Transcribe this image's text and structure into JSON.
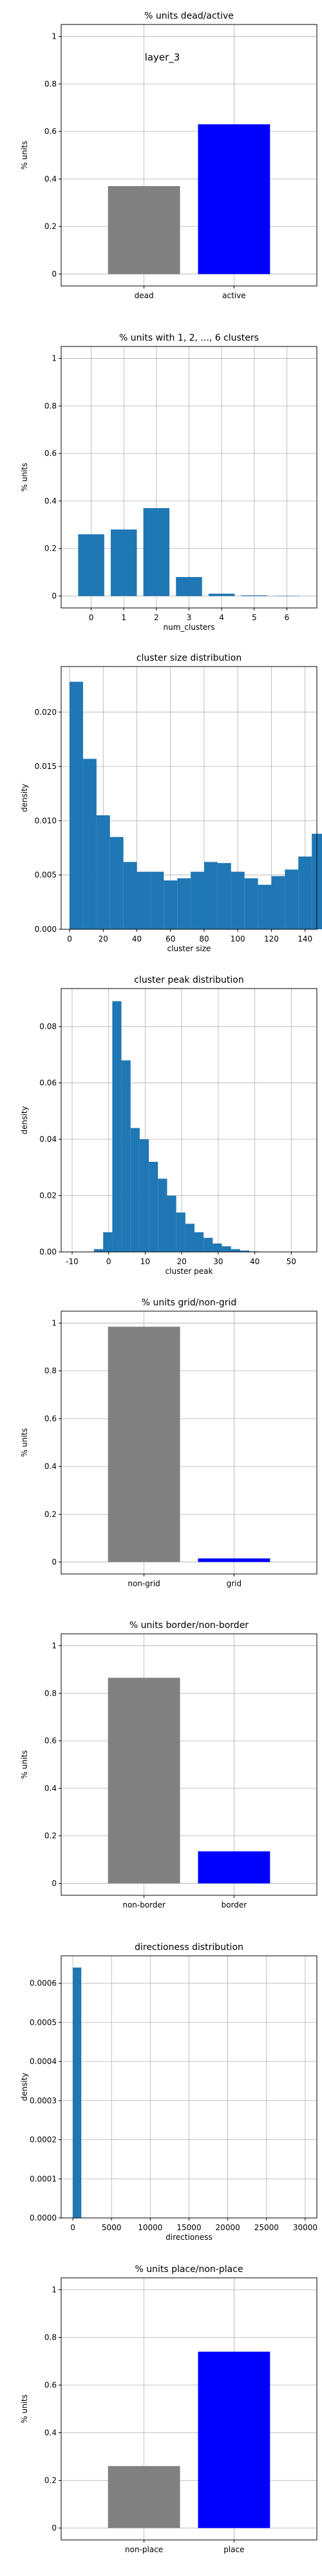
{
  "chart_data": [
    {
      "type": "bar",
      "title": "% units dead/active",
      "annotation": "layer_3",
      "xlabel": "",
      "ylabel": "% units",
      "categories": [
        "dead",
        "active"
      ],
      "values": [
        0.37,
        0.63
      ],
      "colors": [
        "#808080",
        "#0000ff"
      ],
      "ylim": [
        -0.05,
        1.05
      ],
      "yticks": [
        0.0,
        0.2,
        0.4,
        0.6,
        0.8,
        1.0
      ],
      "grid": true
    },
    {
      "type": "bar",
      "title": "% units with 1, 2, ..., 6 clusters",
      "xlabel": "num_clusters",
      "ylabel": "% units",
      "categories": [
        "0",
        "1",
        "2",
        "3",
        "4",
        "5",
        "6"
      ],
      "values": [
        0.26,
        0.28,
        0.37,
        0.08,
        0.01,
        0.003,
        0.001
      ],
      "colors": [
        "#1f77b4"
      ],
      "ylim": [
        -0.05,
        1.05
      ],
      "yticks": [
        0.0,
        0.2,
        0.4,
        0.6,
        0.8,
        1.0
      ],
      "grid": true
    },
    {
      "type": "histogram",
      "title": "cluster size distribution",
      "xlabel": "cluster size",
      "ylabel": "density",
      "bin_start": 0,
      "bin_width": 8,
      "values": [
        0.0228,
        0.0157,
        0.0105,
        0.0085,
        0.0062,
        0.0053,
        0.0053,
        0.0045,
        0.0047,
        0.0053,
        0.0062,
        0.0061,
        0.0053,
        0.0047,
        0.0041,
        0.0049,
        0.0055,
        0.0067,
        0.0088
      ],
      "colors": [
        "#1f77b4"
      ],
      "xlim": [
        -5,
        147
      ],
      "ylim": [
        0,
        0.0242
      ],
      "xticks": [
        0,
        20,
        40,
        60,
        80,
        100,
        120,
        140
      ],
      "yticks": [
        0.0,
        0.005,
        0.01,
        0.015,
        0.02
      ],
      "ytick_labels": [
        "0.000",
        "0.005",
        "0.010",
        "0.015",
        "0.020"
      ],
      "grid": true
    },
    {
      "type": "histogram",
      "title": "cluster peak distribution",
      "xlabel": "cluster peak",
      "ylabel": "density",
      "bin_start": -4,
      "bin_width": 2.5,
      "values": [
        0.001,
        0.007,
        0.089,
        0.068,
        0.044,
        0.04,
        0.032,
        0.026,
        0.02,
        0.014,
        0.01,
        0.007,
        0.005,
        0.003,
        0.002,
        0.001,
        0.0005,
        0.0002
      ],
      "colors": [
        "#1f77b4"
      ],
      "xlim": [
        -13,
        57
      ],
      "ylim": [
        0,
        0.0935
      ],
      "xticks": [
        -10,
        0,
        10,
        20,
        30,
        40,
        50
      ],
      "yticks": [
        0.0,
        0.02,
        0.04,
        0.06,
        0.08
      ],
      "ytick_labels": [
        "0.00",
        "0.02",
        "0.04",
        "0.06",
        "0.08"
      ],
      "grid": true
    },
    {
      "type": "bar",
      "title": "% units grid/non-grid",
      "xlabel": "",
      "ylabel": "% units",
      "categories": [
        "non-grid",
        "grid"
      ],
      "values": [
        0.985,
        0.015
      ],
      "colors": [
        "#808080",
        "#0000ff"
      ],
      "ylim": [
        -0.05,
        1.05
      ],
      "yticks": [
        0.0,
        0.2,
        0.4,
        0.6,
        0.8,
        1.0
      ],
      "grid": true
    },
    {
      "type": "bar",
      "title": "% units border/non-border",
      "xlabel": "",
      "ylabel": "% units",
      "categories": [
        "non-border",
        "border"
      ],
      "values": [
        0.865,
        0.135
      ],
      "colors": [
        "#808080",
        "#0000ff"
      ],
      "ylim": [
        -0.05,
        1.05
      ],
      "yticks": [
        0.0,
        0.2,
        0.4,
        0.6,
        0.8,
        1.0
      ],
      "grid": true
    },
    {
      "type": "histogram",
      "title": "directioness distribution",
      "xlabel": "directioness",
      "ylabel": "density",
      "bin_start": 0,
      "bin_width": 1100,
      "values": [
        0.00064
      ],
      "colors": [
        "#1f77b4"
      ],
      "xlim": [
        -1500,
        31500
      ],
      "ylim": [
        0,
        0.00067
      ],
      "xticks": [
        0,
        5000,
        10000,
        15000,
        20000,
        25000,
        30000
      ],
      "yticks": [
        0.0,
        0.0001,
        0.0002,
        0.0003,
        0.0004,
        0.0005,
        0.0006
      ],
      "ytick_labels": [
        "0.0000",
        "0.0001",
        "0.0002",
        "0.0003",
        "0.0004",
        "0.0005",
        "0.0006"
      ],
      "grid": true
    },
    {
      "type": "bar",
      "title": "% units place/non-place",
      "xlabel": "",
      "ylabel": "% units",
      "categories": [
        "non-place",
        "place"
      ],
      "values": [
        0.26,
        0.74
      ],
      "colors": [
        "#808080",
        "#0000ff"
      ],
      "ylim": [
        -0.05,
        1.05
      ],
      "yticks": [
        0.0,
        0.2,
        0.4,
        0.6,
        0.8,
        1.0
      ],
      "grid": true
    }
  ]
}
